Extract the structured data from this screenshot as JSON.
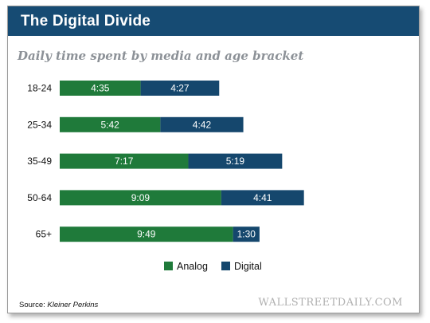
{
  "header": {
    "title": "The Digital Divide"
  },
  "footer": {
    "source_prefix": "Source: ",
    "source_name": "Kleiner Perkins",
    "watermark": "WALLSTREETDAILY.COM"
  },
  "colors": {
    "header_bg": "#164b73",
    "analog": "#1f7a3a",
    "digital": "#15476d"
  },
  "chart_data": {
    "type": "bar",
    "orientation": "horizontal",
    "stacked": true,
    "title": "Daily time spent by media and age bracket",
    "categories": [
      "18-24",
      "25-34",
      "35-49",
      "50-64",
      "65+"
    ],
    "unit": "hours:minutes",
    "series": [
      {
        "name": "Analog",
        "color": "#1f7a3a",
        "values": [
          "4:35",
          "5:42",
          "7:17",
          "9:09",
          "9:49"
        ]
      },
      {
        "name": "Digital",
        "color": "#15476d",
        "values": [
          "4:27",
          "4:42",
          "5:19",
          "4:41",
          "1:30"
        ]
      }
    ],
    "legend": "bottom-center",
    "grid": false,
    "axes_visible": false
  }
}
